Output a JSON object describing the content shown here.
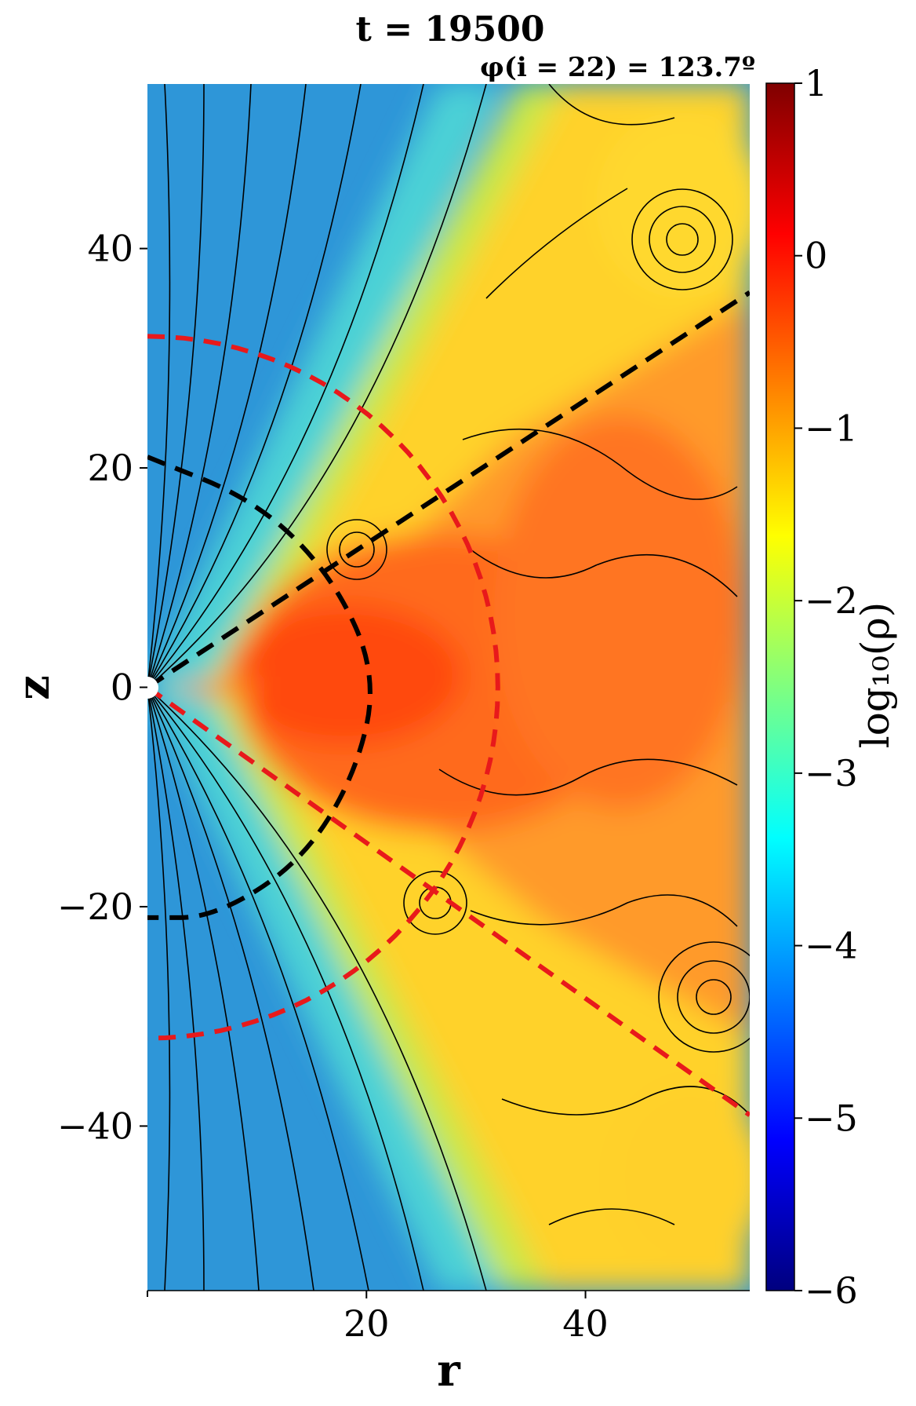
{
  "chart_data": {
    "type": "heatmap",
    "title": "t = 19500",
    "subtitle": "φ(i = 22) = 123.7º",
    "xlabel": "r",
    "ylabel": "z",
    "xlim": [
      0,
      55
    ],
    "ylim": [
      -55,
      55
    ],
    "x_ticks": [
      20,
      40
    ],
    "x_tick_labels": [
      "20",
      "40"
    ],
    "y_ticks": [
      40,
      20,
      0,
      -20,
      -40
    ],
    "y_tick_labels": [
      "40",
      "20",
      "0",
      "−20",
      "−40"
    ],
    "colorbar": {
      "label": "log₁₀(ρ)",
      "range": [
        -6,
        1
      ],
      "ticks": [
        1,
        0,
        -1,
        -2,
        -3,
        -4,
        -5,
        -6
      ],
      "tick_labels": [
        "1",
        "0",
        "−1",
        "−2",
        "−3",
        "−4",
        "−5",
        "−6"
      ],
      "colormap": "jet"
    },
    "overlays": [
      {
        "kind": "streamlines",
        "color": "#000000"
      },
      {
        "kind": "dashed-curve",
        "color": "#e8191b",
        "shape": "circle",
        "radius": 32
      },
      {
        "kind": "dashed-line",
        "color": "#e8191b",
        "points": [
          [
            0,
            0
          ],
          [
            55,
            -39
          ]
        ]
      },
      {
        "kind": "dashed-curve",
        "color": "#000000",
        "points": [
          [
            0,
            21
          ],
          [
            10,
            17
          ],
          [
            17,
            10
          ],
          [
            21,
            1
          ],
          [
            19,
            -8
          ],
          [
            14,
            -16
          ],
          [
            6,
            -21
          ],
          [
            0,
            -21
          ]
        ]
      },
      {
        "kind": "dashed-line",
        "color": "#000000",
        "points": [
          [
            0,
            0
          ],
          [
            55,
            36
          ]
        ]
      }
    ],
    "density_regions": [
      {
        "region": "polar funnel",
        "log_rho": -4.3
      },
      {
        "region": "disk midplane r 10-30",
        "log_rho": -0.1
      },
      {
        "region": "outer wind / upper right",
        "log_rho": -1.3
      }
    ]
  }
}
